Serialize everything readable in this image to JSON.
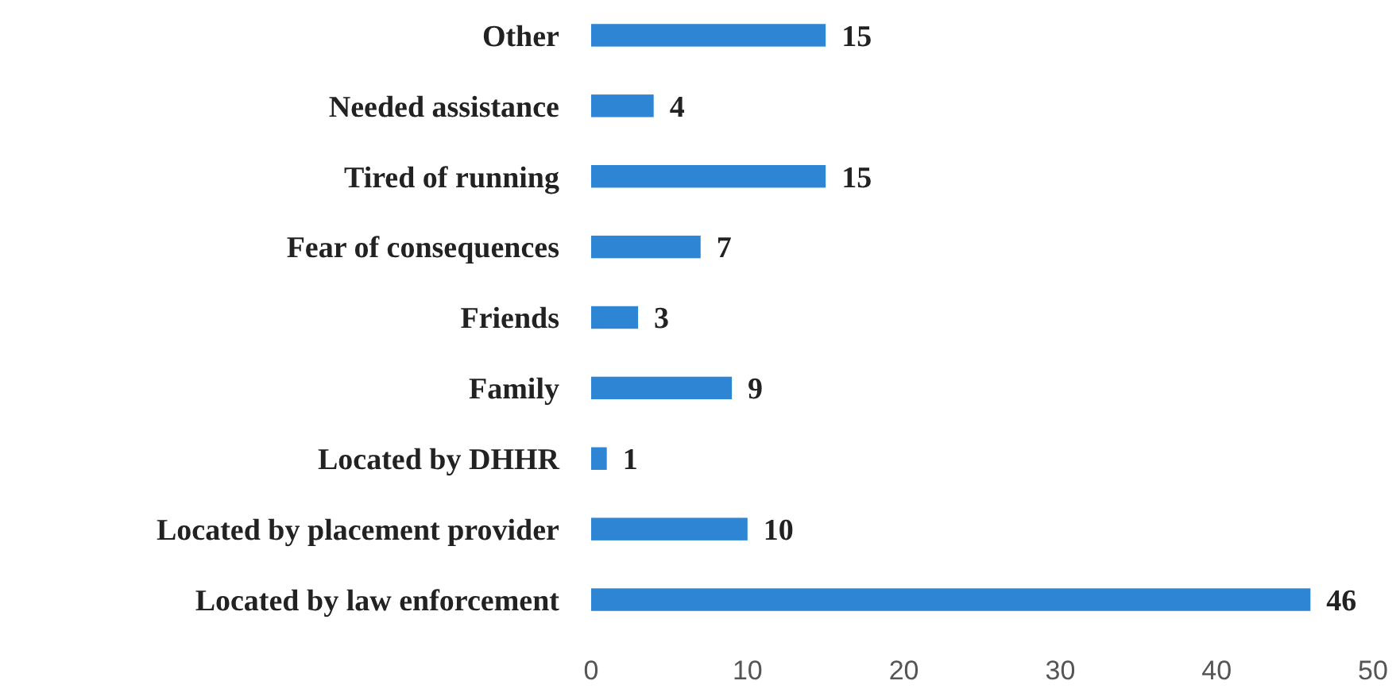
{
  "chart_data": {
    "type": "bar",
    "orientation": "horizontal",
    "categories": [
      "Other",
      "Needed assistance",
      "Tired of running",
      "Fear of consequences",
      "Friends",
      "Family",
      "Located by DHHR",
      "Located by placement provider",
      "Located by law enforcement"
    ],
    "values": [
      15,
      4,
      15,
      7,
      3,
      9,
      1,
      10,
      46
    ],
    "color": "#2e85d3",
    "xlim": [
      0,
      50
    ],
    "xticks": [
      0,
      10,
      20,
      30,
      40,
      50
    ],
    "data_labels": true
  }
}
